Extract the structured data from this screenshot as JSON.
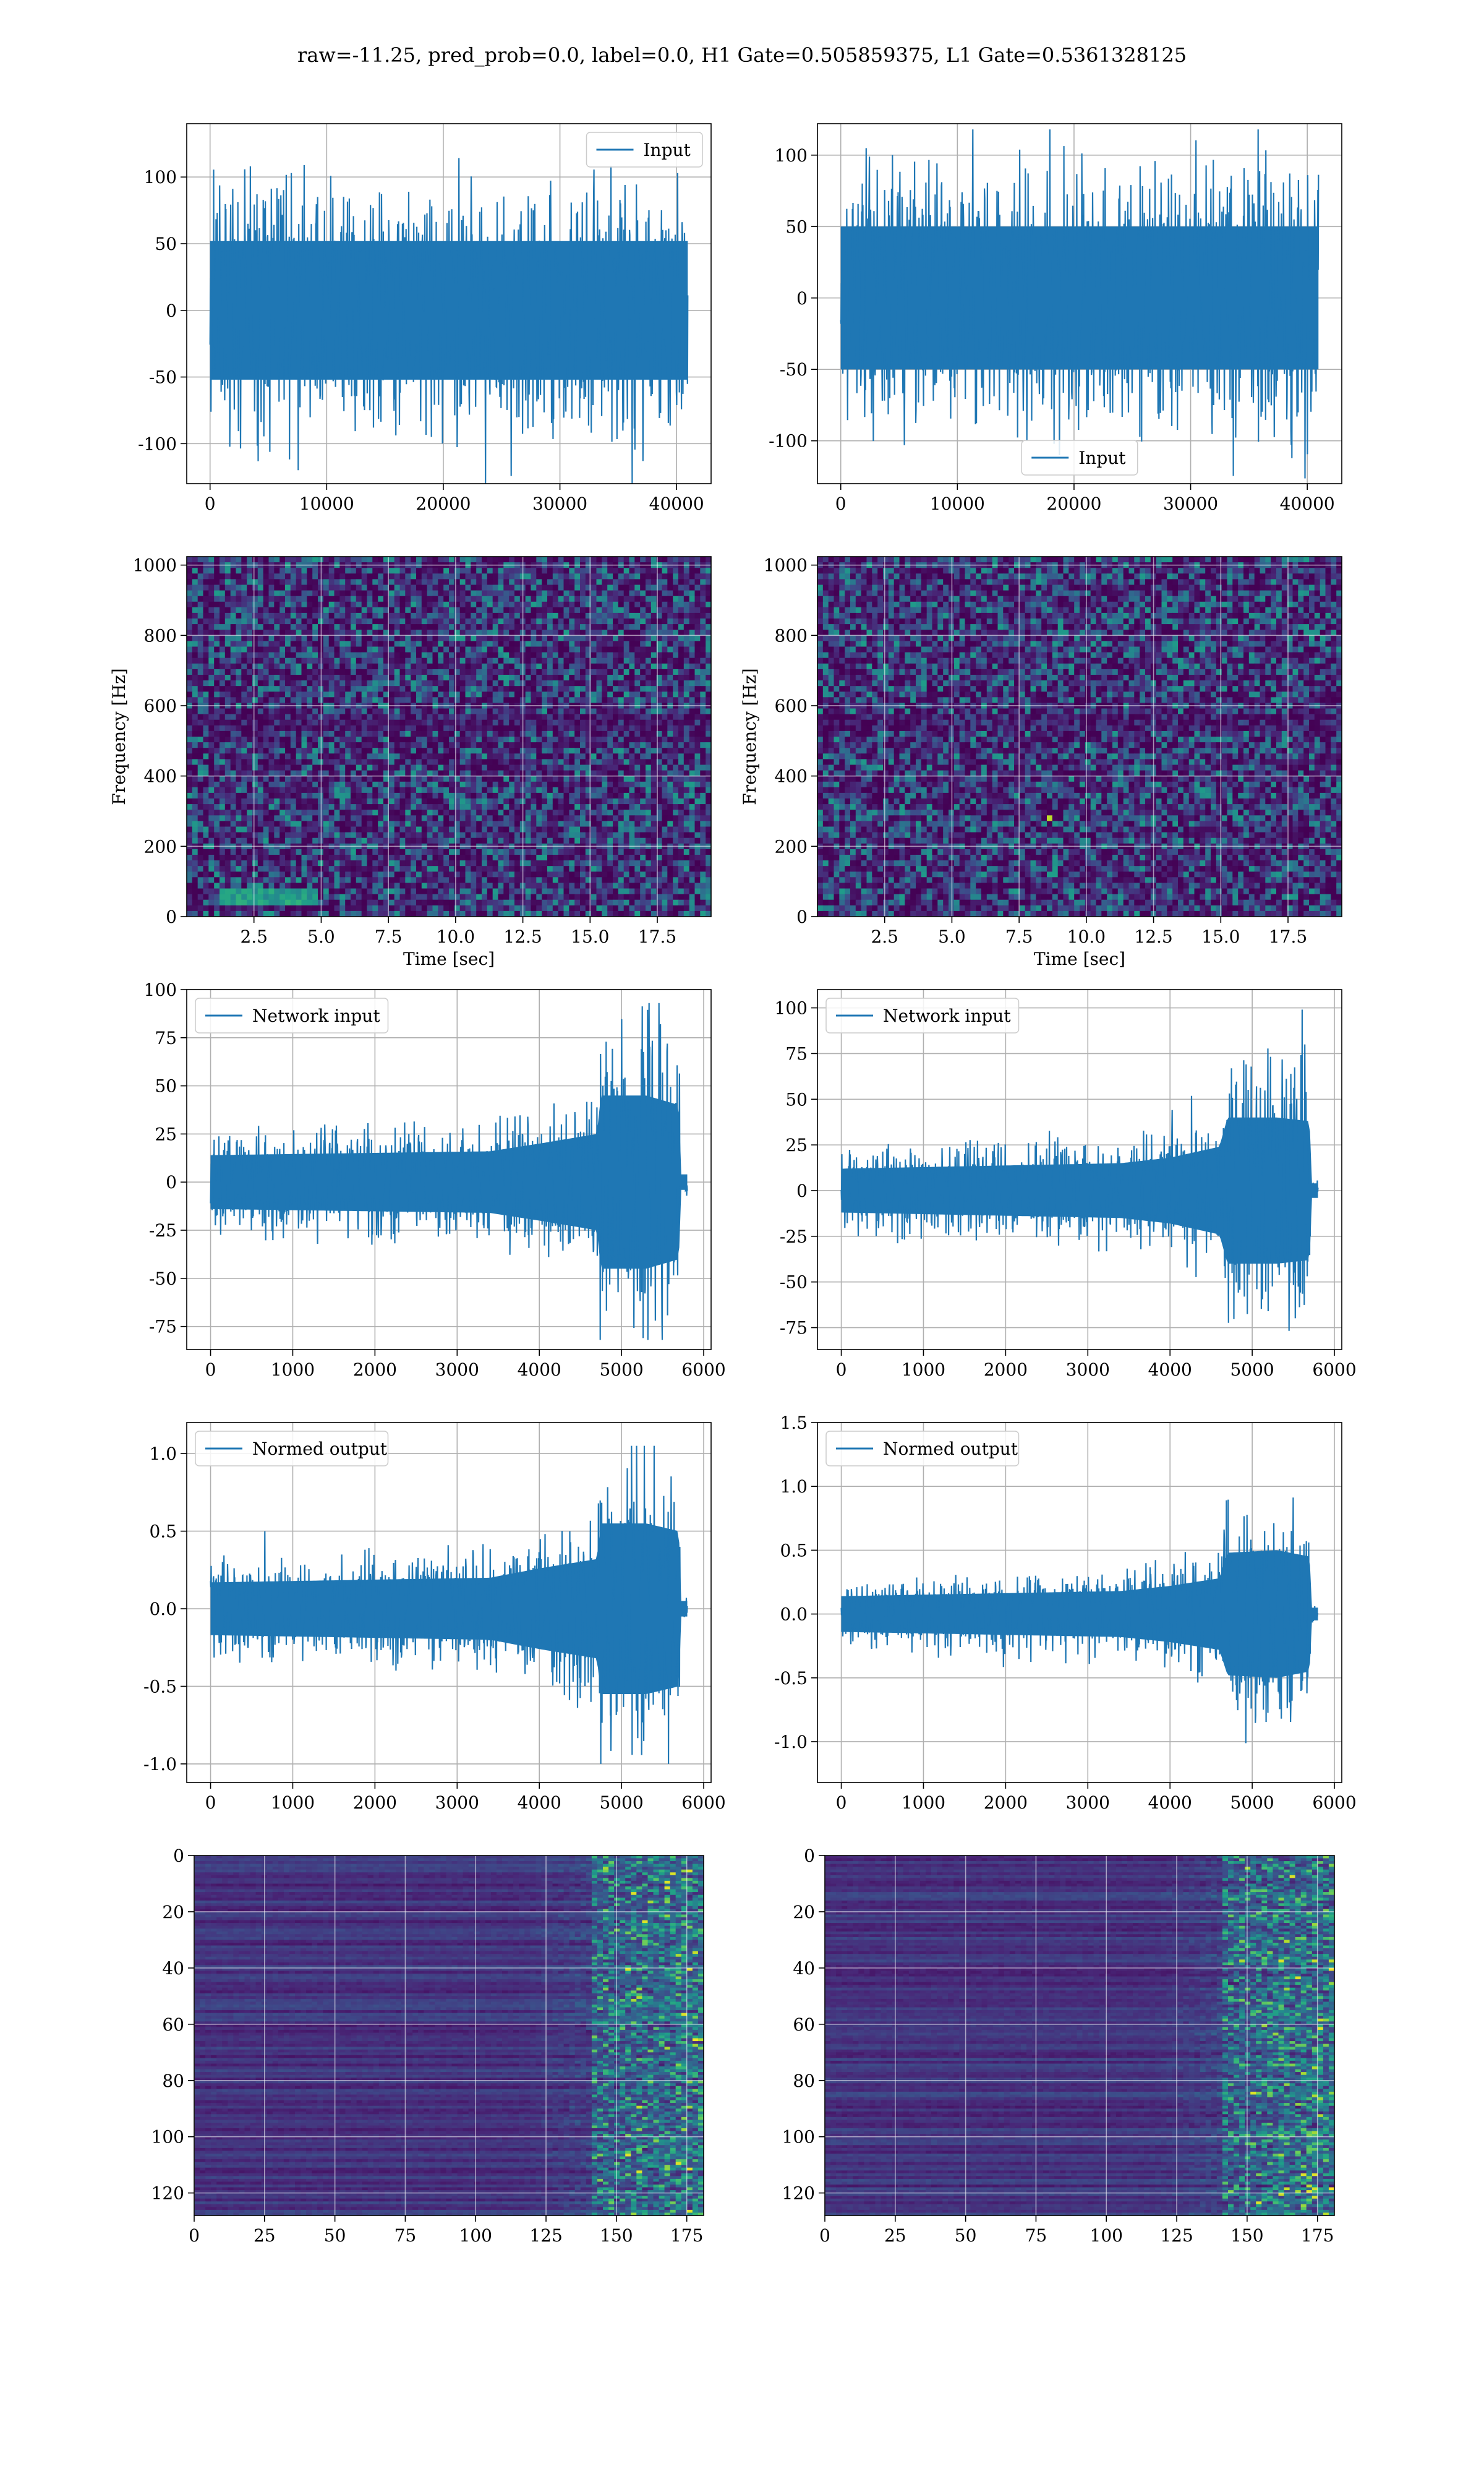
{
  "suptitle": "raw=-11.25, pred_prob=0.0, label=0.0, H1 Gate=0.505859375, L1 Gate=0.5361328125",
  "colors": {
    "line": "#1f77b4",
    "grid": "#b0b0b0",
    "viridis_low": "#440154",
    "viridis_mid": "#21918c",
    "viridis_high": "#fde725"
  },
  "chart_data": [
    {
      "id": "input_H1",
      "type": "line",
      "xlabel": "",
      "ylabel": "",
      "xlim": [
        -2000,
        42960
      ],
      "ylim": [
        -130,
        140
      ],
      "xticks": [
        0,
        10000,
        20000,
        30000,
        40000
      ],
      "yticks": [
        -100,
        -50,
        0,
        50,
        100
      ],
      "legend": {
        "position": "top-right",
        "entries": [
          "Input"
        ]
      },
      "signal": {
        "n": 40960,
        "envelope": [
          [
            0,
            52
          ],
          [
            40960,
            52
          ]
        ],
        "peaks": [
          -130,
          135
        ],
        "tail": 0
      }
    },
    {
      "id": "input_L1",
      "type": "line",
      "xlabel": "",
      "ylabel": "",
      "xlim": [
        -2000,
        42960
      ],
      "ylim": [
        -130,
        122
      ],
      "xticks": [
        0,
        10000,
        20000,
        30000,
        40000
      ],
      "yticks": [
        -100,
        -50,
        0,
        50,
        100
      ],
      "legend": {
        "position": "bottom-center",
        "entries": [
          "Input"
        ]
      },
      "signal": {
        "n": 40960,
        "envelope": [
          [
            0,
            50
          ],
          [
            40960,
            50
          ]
        ],
        "peaks": [
          -127,
          118
        ],
        "tail": 0
      }
    },
    {
      "id": "spec_H1",
      "type": "heatmap",
      "xlabel": "Time [sec]",
      "ylabel": "Frequency [Hz]",
      "xlim": [
        0,
        19.5
      ],
      "ylim": [
        0,
        1024
      ],
      "xticks": [
        2.5,
        5.0,
        7.5,
        10.0,
        12.5,
        15.0,
        17.5
      ],
      "yticks": [
        0,
        200,
        400,
        600,
        800,
        1000
      ],
      "colormap": "viridis"
    },
    {
      "id": "spec_L1",
      "type": "heatmap",
      "xlabel": "Time [sec]",
      "ylabel": "Frequency [Hz]",
      "xlim": [
        0,
        19.5
      ],
      "ylim": [
        0,
        1024
      ],
      "xticks": [
        2.5,
        5.0,
        7.5,
        10.0,
        12.5,
        15.0,
        17.5
      ],
      "yticks": [
        0,
        200,
        400,
        600,
        800,
        1000
      ],
      "colormap": "viridis"
    },
    {
      "id": "net_H1",
      "type": "line",
      "xlabel": "",
      "ylabel": "",
      "xlim": [
        -290,
        6090
      ],
      "ylim": [
        -87,
        100
      ],
      "xticks": [
        0,
        1000,
        2000,
        3000,
        4000,
        5000,
        6000
      ],
      "yticks": [
        -75,
        -50,
        -25,
        0,
        25,
        50,
        75,
        100
      ],
      "legend": {
        "position": "top-left",
        "entries": [
          "Network input"
        ]
      },
      "signal": {
        "n": 5800,
        "envelope": [
          [
            0,
            14
          ],
          [
            3400,
            16
          ],
          [
            4000,
            20
          ],
          [
            4700,
            25
          ],
          [
            4750,
            45
          ],
          [
            5300,
            45
          ],
          [
            5700,
            40
          ],
          [
            5720,
            4
          ],
          [
            5800,
            4
          ]
        ],
        "peaks": [
          -82,
          93
        ],
        "tail": 5720
      }
    },
    {
      "id": "net_L1",
      "type": "line",
      "xlabel": "",
      "ylabel": "",
      "xlim": [
        -290,
        6090
      ],
      "ylim": [
        -87,
        110
      ],
      "xticks": [
        0,
        1000,
        2000,
        3000,
        4000,
        5000,
        6000
      ],
      "yticks": [
        -75,
        -50,
        -25,
        0,
        25,
        50,
        75,
        100
      ],
      "legend": {
        "position": "top-left",
        "entries": [
          "Network input"
        ]
      },
      "signal": {
        "n": 5800,
        "envelope": [
          [
            0,
            12
          ],
          [
            3400,
            15
          ],
          [
            4000,
            18
          ],
          [
            4600,
            24
          ],
          [
            4700,
            40
          ],
          [
            5300,
            40
          ],
          [
            5700,
            38
          ],
          [
            5720,
            4
          ],
          [
            5800,
            4
          ]
        ],
        "peaks": [
          -82,
          104
        ],
        "tail": 5720
      }
    },
    {
      "id": "normed_H1",
      "type": "line",
      "xlabel": "",
      "ylabel": "",
      "xlim": [
        -290,
        6090
      ],
      "ylim": [
        -1.12,
        1.2
      ],
      "xticks": [
        0,
        1000,
        2000,
        3000,
        4000,
        5000,
        6000
      ],
      "yticks": [
        -1.0,
        -0.5,
        0.0,
        0.5,
        1.0
      ],
      "legend": {
        "position": "top-left",
        "entries": [
          "Normed output"
        ]
      },
      "signal": {
        "n": 5800,
        "envelope": [
          [
            0,
            0.17
          ],
          [
            3400,
            0.2
          ],
          [
            4000,
            0.26
          ],
          [
            4700,
            0.32
          ],
          [
            4750,
            0.55
          ],
          [
            5300,
            0.55
          ],
          [
            5700,
            0.5
          ],
          [
            5720,
            0.05
          ],
          [
            5800,
            0.05
          ]
        ],
        "peaks": [
          -1.0,
          1.05
        ],
        "tail": 5720
      }
    },
    {
      "id": "normed_L1",
      "type": "line",
      "xlabel": "",
      "ylabel": "",
      "xlim": [
        -290,
        6090
      ],
      "ylim": [
        -1.32,
        1.5
      ],
      "xticks": [
        0,
        1000,
        2000,
        3000,
        4000,
        5000,
        6000
      ],
      "yticks": [
        -1.0,
        -0.5,
        0.0,
        0.5,
        1.0,
        1.5
      ],
      "legend": {
        "position": "top-left",
        "entries": [
          "Normed output"
        ]
      },
      "signal": {
        "n": 5800,
        "envelope": [
          [
            0,
            0.14
          ],
          [
            3400,
            0.18
          ],
          [
            4000,
            0.22
          ],
          [
            4600,
            0.28
          ],
          [
            4700,
            0.48
          ],
          [
            5300,
            0.5
          ],
          [
            5700,
            0.45
          ],
          [
            5720,
            0.05
          ],
          [
            5800,
            0.05
          ]
        ],
        "peaks": [
          -1.12,
          1.38
        ],
        "tail": 5720
      }
    },
    {
      "id": "feat_H1",
      "type": "heatmap",
      "xlabel": "",
      "ylabel": "",
      "xlim": [
        0,
        181
      ],
      "ylim": [
        128,
        0
      ],
      "xticks": [
        0,
        25,
        50,
        75,
        100,
        125,
        150,
        175
      ],
      "yticks": [
        0,
        20,
        40,
        60,
        80,
        100,
        120
      ],
      "colormap": "viridis"
    },
    {
      "id": "feat_L1",
      "type": "heatmap",
      "xlabel": "",
      "ylabel": "",
      "xlim": [
        0,
        181
      ],
      "ylim": [
        128,
        0
      ],
      "xticks": [
        0,
        25,
        50,
        75,
        100,
        125,
        150,
        175
      ],
      "yticks": [
        0,
        20,
        40,
        60,
        80,
        100,
        120
      ],
      "colormap": "viridis"
    }
  ]
}
